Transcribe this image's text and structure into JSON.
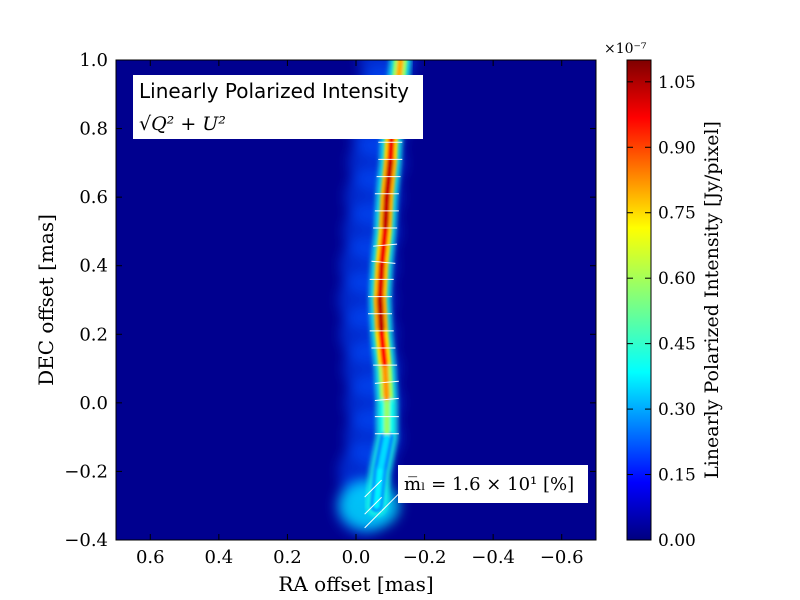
{
  "chart_data": {
    "type": "heatmap",
    "title": "",
    "xlabel": "RA offset [mas]",
    "ylabel": "DEC offset [mas]",
    "xlim": [
      0.7,
      -0.7
    ],
    "ylim": [
      -0.4,
      1.0
    ],
    "x_ticks": [
      0.6,
      0.4,
      0.2,
      0.0,
      -0.2,
      -0.4,
      -0.6
    ],
    "x_tick_labels": [
      "0.6",
      "0.4",
      "0.2",
      "0.0",
      "−0.2",
      "−0.4",
      "−0.6"
    ],
    "y_ticks": [
      -0.4,
      -0.2,
      0.0,
      0.2,
      0.4,
      0.6,
      0.8,
      1.0
    ],
    "y_tick_labels": [
      "−0.4",
      "−0.2",
      "0.0",
      "0.2",
      "0.4",
      "0.6",
      "0.8",
      "1.0"
    ],
    "annotation_title": "Linearly Polarized Intensity",
    "annotation_formula": "√Q² + U²",
    "annotation_stat": "m̅ₗ =  1.6 × 10¹ [%]",
    "colorbar": {
      "label": "Linearly Polarized Intensity [Jy/pixel]",
      "multiplier": "×10⁻⁷",
      "range": [
        0.0,
        1.1
      ],
      "ticks": [
        0.0,
        0.15,
        0.3,
        0.45,
        0.6,
        0.75,
        0.9,
        1.05
      ],
      "tick_labels": [
        "0.00",
        "0.15",
        "0.30",
        "0.45",
        "0.60",
        "0.75",
        "0.90",
        "1.05"
      ],
      "colormap": "jet"
    },
    "jet_ridge": [
      {
        "dec": 1.0,
        "ra": -0.13,
        "intensity": 0.7
      },
      {
        "dec": 0.9,
        "ra": -0.12,
        "intensity": 0.85
      },
      {
        "dec": 0.8,
        "ra": -0.105,
        "intensity": 0.95
      },
      {
        "dec": 0.7,
        "ra": -0.1,
        "intensity": 1.0
      },
      {
        "dec": 0.6,
        "ra": -0.09,
        "intensity": 1.05
      },
      {
        "dec": 0.5,
        "ra": -0.085,
        "intensity": 1.0
      },
      {
        "dec": 0.4,
        "ra": -0.075,
        "intensity": 0.95
      },
      {
        "dec": 0.3,
        "ra": -0.07,
        "intensity": 1.05
      },
      {
        "dec": 0.2,
        "ra": -0.075,
        "intensity": 1.02
      },
      {
        "dec": 0.1,
        "ra": -0.085,
        "intensity": 0.9
      },
      {
        "dec": 0.0,
        "ra": -0.09,
        "intensity": 0.7
      },
      {
        "dec": -0.1,
        "ra": -0.09,
        "intensity": 0.45
      },
      {
        "dec": -0.2,
        "ra": -0.07,
        "intensity": 0.3
      },
      {
        "dec": -0.3,
        "ra": -0.06,
        "intensity": 0.5
      }
    ],
    "evpa_vectors": [
      {
        "ra": -0.1,
        "dec": 0.8,
        "angle": 0
      },
      {
        "ra": -0.1,
        "dec": 0.76,
        "angle": 0
      },
      {
        "ra": -0.1,
        "dec": 0.71,
        "angle": 0
      },
      {
        "ra": -0.095,
        "dec": 0.66,
        "angle": 0
      },
      {
        "ra": -0.09,
        "dec": 0.61,
        "angle": 0
      },
      {
        "ra": -0.09,
        "dec": 0.56,
        "angle": 0
      },
      {
        "ra": -0.085,
        "dec": 0.51,
        "angle": 0
      },
      {
        "ra": -0.085,
        "dec": 0.46,
        "angle": 5
      },
      {
        "ra": -0.08,
        "dec": 0.41,
        "angle": -5
      },
      {
        "ra": -0.075,
        "dec": 0.36,
        "angle": 0
      },
      {
        "ra": -0.07,
        "dec": 0.31,
        "angle": 0
      },
      {
        "ra": -0.07,
        "dec": 0.26,
        "angle": 0
      },
      {
        "ra": -0.075,
        "dec": 0.21,
        "angle": 0
      },
      {
        "ra": -0.08,
        "dec": 0.16,
        "angle": 0
      },
      {
        "ra": -0.085,
        "dec": 0.11,
        "angle": 0
      },
      {
        "ra": -0.09,
        "dec": 0.06,
        "angle": 5
      },
      {
        "ra": -0.09,
        "dec": 0.01,
        "angle": 5
      },
      {
        "ra": -0.09,
        "dec": -0.04,
        "angle": 0
      },
      {
        "ra": -0.09,
        "dec": -0.09,
        "angle": 0
      },
      {
        "ra": -0.05,
        "dec": -0.25,
        "angle": 45
      },
      {
        "ra": -0.05,
        "dec": -0.3,
        "angle": 45
      },
      {
        "ra": -0.05,
        "dec": -0.34,
        "angle": 45
      },
      {
        "ra": -0.1,
        "dec": -0.29,
        "angle": 45
      }
    ]
  }
}
